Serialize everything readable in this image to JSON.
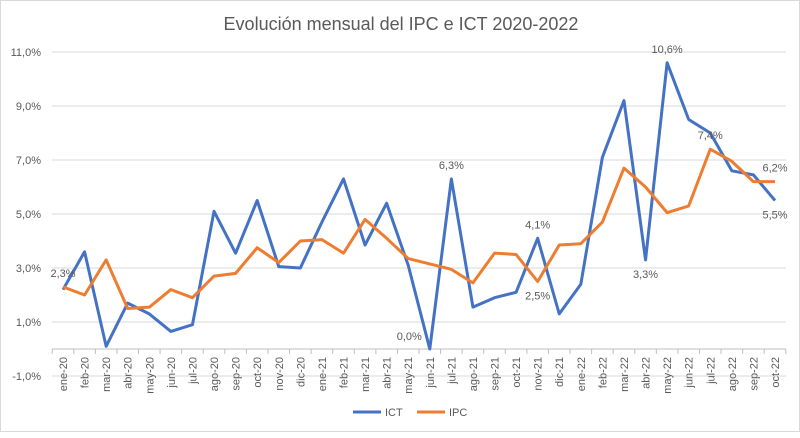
{
  "chart_data": {
    "type": "line",
    "title": "Evolución mensual del IPC e ICT 2020-2022",
    "categories": [
      "ene-20",
      "feb-20",
      "mar-20",
      "abr-20",
      "may-20",
      "jun-20",
      "jul-20",
      "ago-20",
      "sep-20",
      "oct-20",
      "nov-20",
      "dic-20",
      "ene-21",
      "feb-21",
      "mar-21",
      "abr-21",
      "may-21",
      "jun-21",
      "jul-21",
      "ago-21",
      "sep-21",
      "oct-21",
      "nov-21",
      "dic-21",
      "ene-22",
      "feb-22",
      "mar-22",
      "abr-22",
      "may-22",
      "jun-22",
      "jul-22",
      "ago-22",
      "sep-22",
      "oct-22"
    ],
    "series": [
      {
        "name": "ICT",
        "color": "#4472C4",
        "values": [
          2.2,
          3.6,
          0.1,
          1.7,
          1.3,
          0.65,
          0.9,
          5.1,
          3.55,
          5.5,
          3.05,
          3.0,
          4.7,
          6.3,
          3.85,
          5.4,
          3.1,
          0.0,
          6.3,
          1.55,
          1.9,
          2.1,
          4.1,
          1.3,
          2.4,
          7.1,
          9.2,
          3.3,
          10.6,
          8.5,
          8.0,
          6.6,
          6.45,
          5.5
        ],
        "labels": [
          {
            "index": 17,
            "text": "0,0%",
            "pos": "left"
          },
          {
            "index": 18,
            "text": "6,3%",
            "pos": "above"
          },
          {
            "index": 22,
            "text": "4,1%",
            "pos": "above"
          },
          {
            "index": 27,
            "text": "3,3%",
            "pos": "below"
          },
          {
            "index": 28,
            "text": "10,6%",
            "pos": "above"
          },
          {
            "index": 33,
            "text": "5,5%",
            "pos": "below"
          }
        ]
      },
      {
        "name": "IPC",
        "color": "#ED7D31",
        "values": [
          2.3,
          2.0,
          3.3,
          1.5,
          1.55,
          2.2,
          1.9,
          2.7,
          2.8,
          3.75,
          3.2,
          4.0,
          4.05,
          3.55,
          4.8,
          4.1,
          3.35,
          3.15,
          2.95,
          2.45,
          3.55,
          3.5,
          2.5,
          3.85,
          3.9,
          4.7,
          6.7,
          6.0,
          5.05,
          5.3,
          7.4,
          6.95,
          6.2,
          6.2
        ],
        "labels": [
          {
            "index": 0,
            "text": "2,3%",
            "pos": "above"
          },
          {
            "index": 22,
            "text": "2,5%",
            "pos": "below"
          },
          {
            "index": 30,
            "text": "7,4%",
            "pos": "above"
          },
          {
            "index": 33,
            "text": "6,2%",
            "pos": "above"
          }
        ]
      }
    ],
    "yticks": [
      "-1,0%",
      "1,0%",
      "3,0%",
      "5,0%",
      "7,0%",
      "9,0%",
      "11,0%"
    ],
    "ytick_values": [
      -1,
      1,
      3,
      5,
      7,
      9,
      11
    ],
    "ylim": [
      -1,
      11
    ],
    "grid": true,
    "legend": "bottom"
  }
}
